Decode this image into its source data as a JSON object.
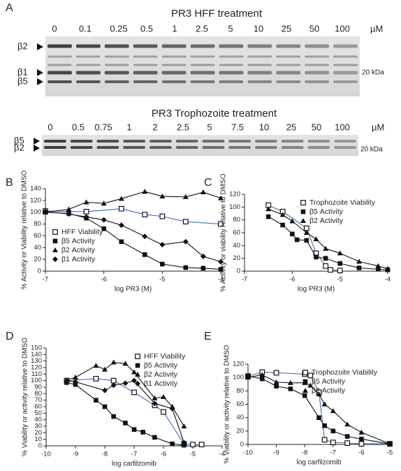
{
  "figure": {
    "panel": "A",
    "gels": [
      {
        "title": "PR3 HFF treatment",
        "lanes": [
          "0",
          "0.1",
          "0.25",
          "0.5",
          "1",
          "2.5",
          "5",
          "10",
          "25",
          "50",
          "100"
        ],
        "unit": "µM",
        "bands": [
          "β2",
          "β1",
          "β5"
        ],
        "marker": "20 kDa"
      },
      {
        "title": "PR3 Trophozoite treatment",
        "lanes": [
          "0",
          "0.5",
          "0.75",
          "1",
          "2",
          "2.5",
          "5",
          "7.5",
          "10",
          "25",
          "50",
          "100"
        ],
        "unit": "µM",
        "bands": [
          "β5",
          "β2"
        ],
        "marker": "20 kDa"
      }
    ]
  },
  "chart_data": [
    {
      "type": "scatter",
      "panel": "B",
      "x_label": "log PR3 (M)",
      "y_label": "% Activity or Viability relative to DMSO",
      "x": [
        -7,
        -6.6,
        -6.3,
        -6,
        -5.7,
        -5.3,
        -5,
        -4.6,
        -4.3,
        -4
      ],
      "xlim": [
        -7,
        -4
      ],
      "xticks": [
        -7,
        -6,
        -5,
        -4
      ],
      "ylim": [
        0,
        140
      ],
      "yticks": [
        0,
        20,
        40,
        60,
        80,
        100,
        120,
        140
      ],
      "legend": "lower left",
      "series": [
        {
          "name": "HFF Viability",
          "marker": "open-square",
          "color": "#111111",
          "line_color": "#3d6db5",
          "values": [
            102,
            null,
            101,
            null,
            106,
            96,
            93,
            84,
            null,
            80
          ]
        },
        {
          "name": "β5 Activity",
          "marker": "square",
          "color": "#111111",
          "line_color": "#111111",
          "values": [
            100,
            98,
            90,
            72,
            50,
            28,
            12,
            6,
            5,
            3
          ]
        },
        {
          "name": "β2 Activity",
          "marker": "triangle",
          "color": "#111111",
          "line_color": "#111111",
          "values": [
            100,
            105,
            117,
            115,
            123,
            135,
            127,
            126,
            134,
            124
          ]
        },
        {
          "name": "β1 Activity",
          "marker": "diamond",
          "color": "#111111",
          "line_color": "#111111",
          "values": [
            101,
            97,
            92,
            87,
            78,
            59,
            45,
            50,
            25,
            16
          ]
        }
      ]
    },
    {
      "type": "scatter",
      "panel": "C",
      "x_label": "log PR3 (M)",
      "y_label": "% Activity or viability relative to DMSO",
      "x": [
        -6.5,
        -6.2,
        -6,
        -5.9,
        -5.7,
        -5.5,
        -5.3,
        -5.2,
        -5,
        -4.6,
        -4.2,
        -4
      ],
      "xlim": [
        -7,
        -4
      ],
      "xticks": [
        -7,
        -6,
        -5,
        -4
      ],
      "ylim": [
        0,
        120
      ],
      "yticks": [
        0,
        20,
        40,
        60,
        80,
        100,
        120
      ],
      "legend": "upper right",
      "series": [
        {
          "name": "Trophozoite Viability",
          "marker": "open-square",
          "color": "#111111",
          "line_color": "#3d6db5",
          "values": [
            103,
            93,
            null,
            null,
            67,
            28,
            8,
            2,
            1,
            null,
            null,
            null
          ]
        },
        {
          "name": "β5 Activity",
          "marker": "square",
          "color": "#111111",
          "line_color": "#111111",
          "values": [
            85,
            72,
            58,
            49,
            48,
            22,
            20,
            null,
            12,
            5,
            3,
            2
          ]
        },
        {
          "name": "β2 Activity",
          "marker": "triangle",
          "color": "#111111",
          "line_color": "#111111",
          "values": [
            97,
            88,
            78,
            null,
            60,
            50,
            35,
            null,
            28,
            15,
            8,
            4
          ]
        }
      ]
    },
    {
      "type": "scatter",
      "panel": "D",
      "x_label": "log carfilzomib",
      "y_label": "% Viability or activity relative to DMSO",
      "x": [
        -9.3,
        -9,
        -8.3,
        -8,
        -7.7,
        -7.3,
        -7,
        -6.7,
        -6.3,
        -6,
        -5.7,
        -5.3,
        -5,
        -4.7
      ],
      "xlim": [
        -10,
        -4
      ],
      "xticks": [
        -10,
        -9,
        -8,
        -7,
        -6,
        -5,
        -4
      ],
      "ylim": [
        0,
        150
      ],
      "yticks": [
        0,
        10,
        20,
        30,
        40,
        50,
        60,
        70,
        80,
        90,
        100,
        110,
        120,
        130,
        140,
        150
      ],
      "legend": "upper right",
      "series": [
        {
          "name": "HFF Viability",
          "marker": "open-square",
          "color": "#111111",
          "line_color": "#3d6db5",
          "values": [
            100,
            null,
            103,
            null,
            100,
            null,
            82,
            null,
            62,
            52,
            null,
            3,
            2,
            2
          ]
        },
        {
          "name": "β5 Activity",
          "marker": "square",
          "color": "#111111",
          "line_color": "#111111",
          "values": [
            97,
            94,
            70,
            60,
            45,
            35,
            25,
            21,
            13,
            null,
            3,
            1,
            null,
            null
          ]
        },
        {
          "name": "β2 Activity",
          "marker": "triangle",
          "color": "#111111",
          "line_color": "#111111",
          "values": [
            101,
            105,
            123,
            117,
            128,
            126,
            113,
            null,
            73,
            75,
            60,
            30,
            null,
            null
          ]
        },
        {
          "name": "β1 Activity",
          "marker": "diamond",
          "color": "#111111",
          "line_color": "#111111",
          "values": [
            100,
            98,
            null,
            85,
            93,
            96,
            100,
            null,
            65,
            null,
            57,
            5,
            null,
            null
          ]
        }
      ]
    },
    {
      "type": "scatter",
      "panel": "E",
      "x_label": "log carfilzomib",
      "y_label": "% Viability or activity relative to DMSO",
      "x": [
        -10,
        -9.5,
        -9,
        -8.5,
        -8,
        -7.8,
        -7.5,
        -7.3,
        -7,
        -6.5,
        -6,
        -5
      ],
      "xlim": [
        -10,
        -5
      ],
      "xticks": [
        -10,
        -9,
        -8,
        -7,
        -6,
        -5
      ],
      "ylim": [
        0,
        120
      ],
      "yticks": [
        0,
        20,
        40,
        60,
        80,
        100,
        120
      ],
      "legend": "upper right",
      "series": [
        {
          "name": "Trophozoite Viability",
          "marker": "open-square",
          "color": "#111111",
          "line_color": "#3d6db5",
          "values": [
            102,
            108,
            107,
            null,
            105,
            103,
            78,
            7,
            3,
            2,
            1,
            1
          ]
        },
        {
          "name": "β5 Activity",
          "marker": "square",
          "color": "#111111",
          "line_color": "#111111",
          "values": [
            102,
            98,
            87,
            83,
            73,
            null,
            40,
            28,
            20,
            12,
            8,
            1
          ]
        },
        {
          "name": "β2 Activity",
          "marker": "triangle",
          "color": "#111111",
          "line_color": "#111111",
          "values": [
            100,
            104,
            93,
            92,
            92,
            88,
            75,
            60,
            50,
            30,
            18,
            1
          ]
        }
      ]
    }
  ]
}
